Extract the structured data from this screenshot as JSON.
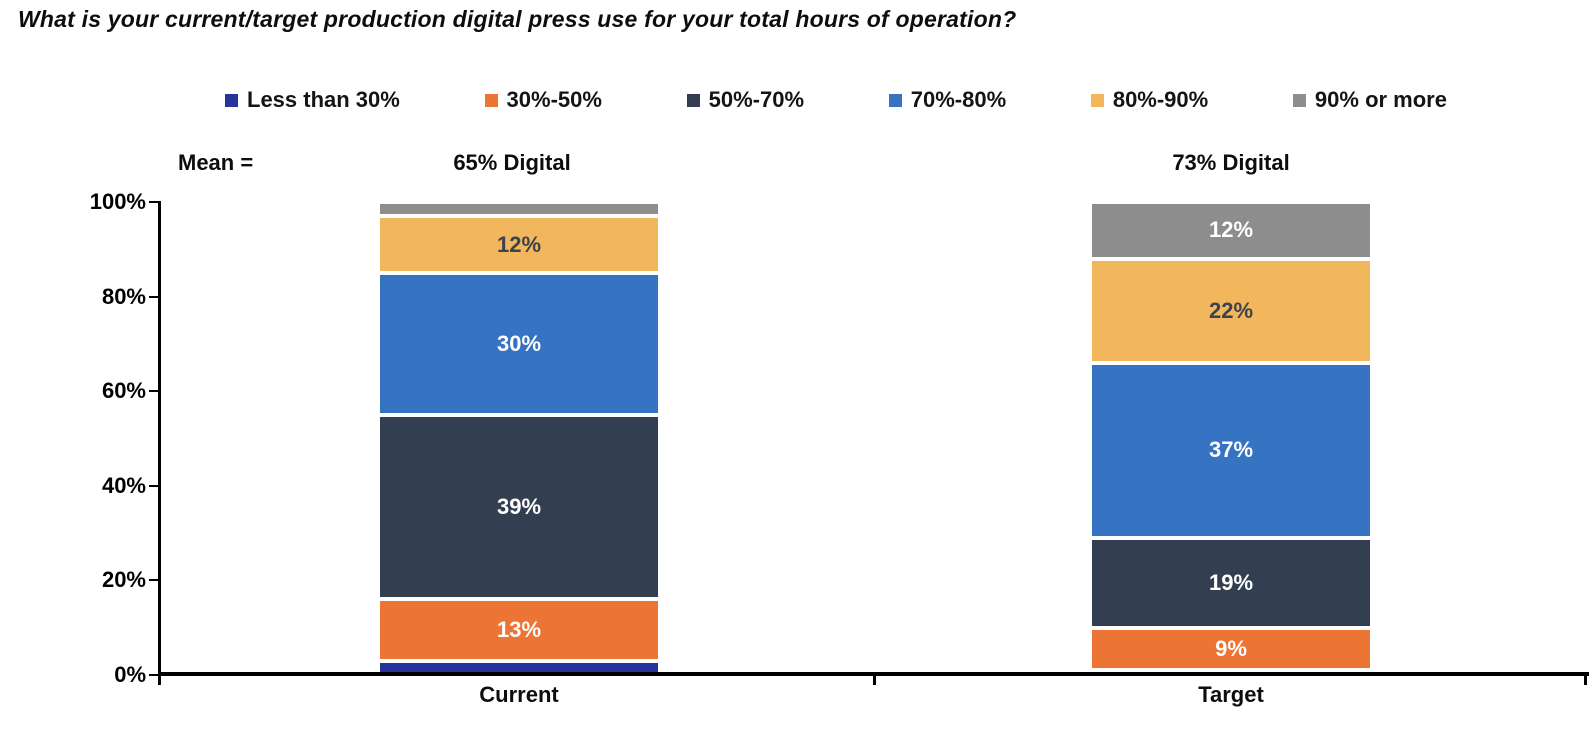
{
  "title": "What is your current/target production digital press use for your total hours of operation?",
  "mean": {
    "prefix": "Mean =",
    "current": "65% Digital",
    "target": "73% Digital"
  },
  "y_axis": {
    "ticks": [
      {
        "label": "0%",
        "value": 0
      },
      {
        "label": "20%",
        "value": 20
      },
      {
        "label": "40%",
        "value": 40
      },
      {
        "label": "60%",
        "value": 60
      },
      {
        "label": "80%",
        "value": 80
      },
      {
        "label": "100%",
        "value": 100
      }
    ]
  },
  "chart_data": {
    "type": "bar",
    "stacked": true,
    "title": "What is your current/target production digital press use for your total hours of operation?",
    "categories": [
      "Current",
      "Target"
    ],
    "series": [
      {
        "name": "Less than 30%",
        "color": "#28339B",
        "label_color": "#FFFFFF",
        "values": [
          3,
          1
        ],
        "data_labels": [
          "",
          ""
        ]
      },
      {
        "name": "30%-50%",
        "color": "#EC7434",
        "label_color": "#FFFFFF",
        "values": [
          13,
          9
        ],
        "data_labels": [
          "13%",
          "9%"
        ]
      },
      {
        "name": "50%-70%",
        "color": "#333F50",
        "label_color": "#FFFFFF",
        "values": [
          39,
          19
        ],
        "data_labels": [
          "39%",
          "19%"
        ]
      },
      {
        "name": "70%-80%",
        "color": "#3673C3",
        "label_color": "#FFFFFF",
        "values": [
          30,
          37
        ],
        "data_labels": [
          "30%",
          "37%"
        ]
      },
      {
        "name": "80%-90%",
        "color": "#F2B65C",
        "label_color": "#3B4350",
        "values": [
          12,
          22
        ],
        "data_labels": [
          "12%",
          "22%"
        ]
      },
      {
        "name": "90% or more",
        "color": "#8D8D8D",
        "label_color": "#FFFFFF",
        "values": [
          3,
          12
        ],
        "data_labels": [
          "",
          "12%"
        ]
      }
    ],
    "annotations": {
      "mean_current": "65% Digital",
      "mean_target": "73% Digital"
    },
    "ylim": [
      0,
      100
    ],
    "grid": false,
    "legend_position": "top"
  }
}
